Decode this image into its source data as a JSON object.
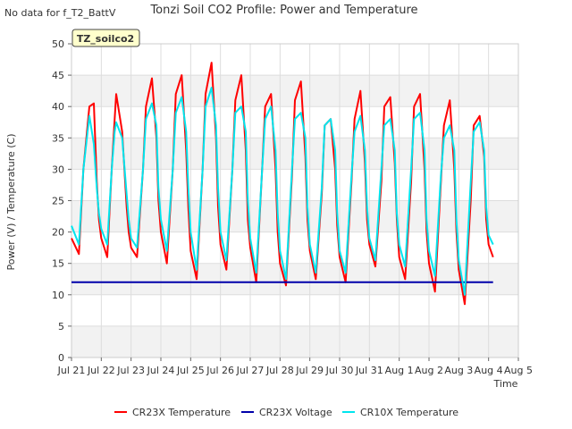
{
  "top_note": "No data for f_T2_BattV",
  "chart_data": {
    "type": "line",
    "title": "Tonzi Soil CO2 Profile: Power and Temperature",
    "xlabel": "Time",
    "ylabel": "Power (V) / Temperature (C)",
    "badge": "TZ_soilco2",
    "xlim": [
      0,
      15
    ],
    "ylim": [
      0,
      50
    ],
    "x_ticks": [
      {
        "v": 0,
        "label": "Jul 21"
      },
      {
        "v": 1,
        "label": "Jul 22"
      },
      {
        "v": 2,
        "label": "Jul 23"
      },
      {
        "v": 3,
        "label": "Jul 24"
      },
      {
        "v": 4,
        "label": "Jul 25"
      },
      {
        "v": 5,
        "label": "Jul 26"
      },
      {
        "v": 6,
        "label": "Jul 27"
      },
      {
        "v": 7,
        "label": "Jul 28"
      },
      {
        "v": 8,
        "label": "Jul 29"
      },
      {
        "v": 9,
        "label": "Jul 30"
      },
      {
        "v": 10,
        "label": "Jul 31"
      },
      {
        "v": 11,
        "label": "Aug 1"
      },
      {
        "v": 12,
        "label": "Aug 2"
      },
      {
        "v": 13,
        "label": "Aug 3"
      },
      {
        "v": 14,
        "label": "Aug 4"
      },
      {
        "v": 15,
        "label": "Aug 5"
      }
    ],
    "y_ticks": [
      0,
      5,
      10,
      15,
      20,
      25,
      30,
      35,
      40,
      45,
      50
    ],
    "grid": true,
    "legend_position": "bottom",
    "series": [
      {
        "name": "CR23X Temperature",
        "color": "#ff0000",
        "x": [
          0.0,
          0.25,
          0.4,
          0.6,
          0.75,
          0.85,
          0.92,
          1.0,
          1.2,
          1.35,
          1.45,
          1.5,
          1.7,
          1.85,
          1.92,
          2.0,
          2.2,
          2.4,
          2.5,
          2.7,
          2.85,
          2.92,
          3.0,
          3.2,
          3.4,
          3.5,
          3.7,
          3.85,
          3.92,
          4.0,
          4.2,
          4.4,
          4.5,
          4.7,
          4.85,
          4.92,
          5.0,
          5.2,
          5.4,
          5.5,
          5.7,
          5.85,
          5.92,
          6.0,
          6.2,
          6.4,
          6.5,
          6.7,
          6.85,
          6.92,
          7.0,
          7.2,
          7.4,
          7.5,
          7.7,
          7.85,
          7.92,
          8.0,
          8.2,
          8.4,
          8.5,
          8.7,
          8.85,
          8.92,
          9.0,
          9.2,
          9.4,
          9.5,
          9.7,
          9.85,
          9.92,
          10.0,
          10.2,
          10.4,
          10.5,
          10.7,
          10.85,
          10.92,
          11.0,
          11.2,
          11.4,
          11.5,
          11.7,
          11.85,
          11.92,
          12.0,
          12.2,
          12.4,
          12.5,
          12.7,
          12.85,
          12.92,
          13.0,
          13.2,
          13.4,
          13.5,
          13.7,
          13.85,
          13.92,
          14.0,
          14.15
        ],
        "y": [
          19.0,
          16.5,
          30.0,
          40.0,
          40.5,
          28.0,
          22.0,
          19.0,
          16.0,
          30.0,
          38.0,
          42.0,
          36.0,
          24.0,
          20.0,
          17.5,
          16.0,
          30.0,
          40.0,
          44.5,
          35.0,
          25.0,
          20.0,
          15.0,
          30.0,
          42.0,
          45.0,
          33.0,
          24.0,
          17.0,
          12.5,
          30.0,
          42.0,
          47.0,
          35.0,
          24.0,
          18.0,
          14.0,
          30.0,
          41.0,
          45.0,
          33.0,
          22.0,
          17.5,
          12.0,
          30.0,
          40.0,
          42.0,
          30.0,
          20.0,
          15.0,
          11.5,
          29.0,
          41.0,
          44.0,
          32.0,
          22.0,
          17.0,
          12.5,
          26.0,
          37.0,
          38.0,
          30.0,
          21.0,
          16.0,
          12.0,
          28.0,
          38.0,
          42.5,
          31.0,
          22.0,
          18.0,
          14.5,
          28.0,
          40.0,
          41.5,
          31.0,
          22.0,
          16.0,
          12.5,
          28.0,
          40.0,
          42.0,
          30.0,
          20.0,
          15.0,
          10.5,
          28.0,
          37.0,
          41.0,
          30.0,
          20.0,
          14.0,
          8.5,
          25.0,
          37.0,
          38.5,
          32.0,
          22.0,
          18.0,
          16.0
        ]
      },
      {
        "name": "CR23X Voltage",
        "color": "#0000aa",
        "x": [
          0.0,
          14.15
        ],
        "y": [
          12.0,
          12.0
        ]
      },
      {
        "name": "CR10X Temperature",
        "color": "#00e5ee",
        "x": [
          0.0,
          0.25,
          0.4,
          0.6,
          0.75,
          0.85,
          0.92,
          1.0,
          1.2,
          1.35,
          1.45,
          1.5,
          1.7,
          1.85,
          1.92,
          2.0,
          2.2,
          2.4,
          2.5,
          2.7,
          2.85,
          2.92,
          3.0,
          3.2,
          3.4,
          3.5,
          3.7,
          3.85,
          3.92,
          4.0,
          4.2,
          4.4,
          4.5,
          4.7,
          4.85,
          4.92,
          5.0,
          5.2,
          5.4,
          5.5,
          5.7,
          5.85,
          5.92,
          6.0,
          6.2,
          6.4,
          6.5,
          6.7,
          6.85,
          6.92,
          7.0,
          7.2,
          7.4,
          7.5,
          7.7,
          7.85,
          7.92,
          8.0,
          8.2,
          8.4,
          8.5,
          8.7,
          8.85,
          8.92,
          9.0,
          9.2,
          9.4,
          9.5,
          9.7,
          9.85,
          9.92,
          10.0,
          10.2,
          10.4,
          10.5,
          10.7,
          10.85,
          10.92,
          11.0,
          11.2,
          11.4,
          11.5,
          11.7,
          11.85,
          11.92,
          12.0,
          12.2,
          12.4,
          12.5,
          12.7,
          12.85,
          12.92,
          13.0,
          13.2,
          13.4,
          13.5,
          13.7,
          13.85,
          13.92,
          14.0,
          14.15
        ],
        "y": [
          21.0,
          18.0,
          30.0,
          38.5,
          34.0,
          27.0,
          23.0,
          20.5,
          18.0,
          30.0,
          36.0,
          37.5,
          35.0,
          26.0,
          22.0,
          19.0,
          17.5,
          30.0,
          38.0,
          40.5,
          37.0,
          27.0,
          22.0,
          17.0,
          30.0,
          39.0,
          41.5,
          36.0,
          27.0,
          20.0,
          14.0,
          30.0,
          40.0,
          43.0,
          37.0,
          27.0,
          20.0,
          15.5,
          30.0,
          39.0,
          40.0,
          36.0,
          25.0,
          19.0,
          13.5,
          30.0,
          38.0,
          40.0,
          33.0,
          23.0,
          17.0,
          12.5,
          30.0,
          38.0,
          39.0,
          35.0,
          24.0,
          18.0,
          13.5,
          27.0,
          37.0,
          38.0,
          33.0,
          23.0,
          17.0,
          13.5,
          29.0,
          36.0,
          38.5,
          33.0,
          24.0,
          19.0,
          15.5,
          30.0,
          37.0,
          38.0,
          33.0,
          23.0,
          18.0,
          14.5,
          30.0,
          38.0,
          39.0,
          33.0,
          22.0,
          17.0,
          13.0,
          29.0,
          35.0,
          37.0,
          33.0,
          22.0,
          15.5,
          10.0,
          28.0,
          36.0,
          37.5,
          33.0,
          24.0,
          19.5,
          18.0
        ]
      }
    ]
  }
}
